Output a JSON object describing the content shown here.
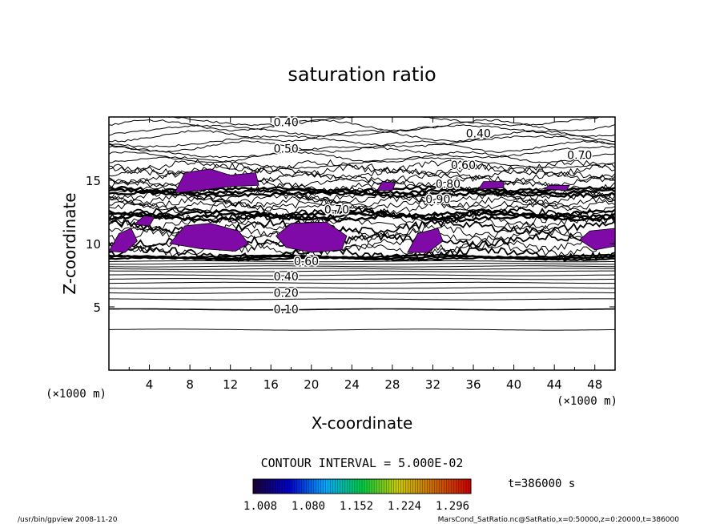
{
  "chart_data": {
    "type": "contour",
    "title": "saturation ratio",
    "xlabel": "X-coordinate",
    "ylabel": "Z-coordinate",
    "x_unit_left": "(×1000 m)",
    "x_unit_right": "(×1000 m)",
    "xlim": [
      0,
      50
    ],
    "ylim": [
      0,
      20
    ],
    "x_ticks": [
      4,
      8,
      12,
      16,
      20,
      24,
      28,
      32,
      36,
      40,
      44,
      48
    ],
    "y_ticks": [
      5,
      10,
      15
    ],
    "contour_labels": [
      {
        "text": "0.40",
        "x": 17.5,
        "z": 19.6
      },
      {
        "text": "0.40",
        "x": 36.5,
        "z": 18.7
      },
      {
        "text": "0.50",
        "x": 17.5,
        "z": 17.5
      },
      {
        "text": "0.70",
        "x": 46.5,
        "z": 17.0
      },
      {
        "text": "0.60",
        "x": 35.0,
        "z": 16.2
      },
      {
        "text": "0.80",
        "x": 33.5,
        "z": 14.7
      },
      {
        "text": "0.90",
        "x": 32.5,
        "z": 13.5
      },
      {
        "text": "0.70",
        "x": 22.5,
        "z": 12.7
      },
      {
        "text": "0.60",
        "x": 19.5,
        "z": 8.6
      },
      {
        "text": "0.40",
        "x": 17.5,
        "z": 7.4
      },
      {
        "text": "0.20",
        "x": 17.5,
        "z": 6.1
      },
      {
        "text": "0.10",
        "x": 17.5,
        "z": 4.8
      }
    ],
    "contour_interval": "CONTOUR INTERVAL = 5.000E-02",
    "colorbar": {
      "tick_labels": [
        "1.008",
        "1.080",
        "1.152",
        "1.224",
        "1.296"
      ],
      "colormap": [
        "#1a0033",
        "#0000cc",
        "#00aaff",
        "#00cc44",
        "#cccc00",
        "#cc6600",
        "#cc0000"
      ]
    },
    "fill_color": "#7f0aa8",
    "time_label": "t=386000 s"
  },
  "footer": {
    "left": "/usr/bin/gpview   2008-11-20",
    "right": "MarsCond_SatRatio.nc@SatRatio,x=0:50000,z=0:20000,t=386000"
  }
}
